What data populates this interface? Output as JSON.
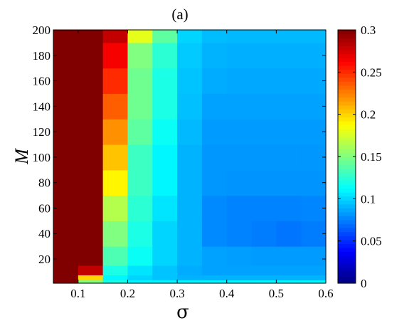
{
  "chart_data": {
    "type": "heatmap",
    "title": "(a)",
    "xlabel": "σ",
    "ylabel": "M",
    "xlim": [
      0.05,
      0.6
    ],
    "ylim": [
      1,
      200
    ],
    "x_ticks": [
      "0.1",
      "0.2",
      "0.3",
      "0.4",
      "0.5",
      "0.6"
    ],
    "y_ticks": [
      "20",
      "40",
      "60",
      "80",
      "100",
      "120",
      "140",
      "160",
      "180",
      "200"
    ],
    "colorbar": {
      "colormap": "jet",
      "range": [
        0,
        0.3
      ],
      "ticks": [
        "0",
        "0.05",
        "0.1",
        "0.15",
        "0.2",
        "0.25",
        "0.3"
      ]
    },
    "sigma_columns": [
      0.075,
      0.125,
      0.175,
      0.225,
      0.275,
      0.325,
      0.375,
      0.425,
      0.475,
      0.525,
      0.575
    ],
    "M_rows": [
      2,
      5,
      10,
      20,
      40,
      60,
      80,
      100,
      120,
      140,
      160,
      180,
      200
    ],
    "values": [
      [
        0.3,
        0.15,
        0.12,
        0.11,
        0.11,
        0.11,
        0.11,
        0.11,
        0.11,
        0.11,
        0.11
      ],
      [
        0.3,
        0.2,
        0.11,
        0.1,
        0.095,
        0.09,
        0.09,
        0.09,
        0.09,
        0.09,
        0.09
      ],
      [
        0.3,
        0.28,
        0.12,
        0.105,
        0.095,
        0.088,
        0.085,
        0.085,
        0.085,
        0.085,
        0.085
      ],
      [
        0.3,
        0.3,
        0.135,
        0.115,
        0.1,
        0.09,
        0.085,
        0.084,
        0.083,
        0.083,
        0.083
      ],
      [
        0.3,
        0.3,
        0.15,
        0.12,
        0.1,
        0.09,
        0.078,
        0.076,
        0.074,
        0.072,
        0.074
      ],
      [
        0.3,
        0.3,
        0.165,
        0.125,
        0.105,
        0.09,
        0.078,
        0.076,
        0.076,
        0.076,
        0.077
      ],
      [
        0.3,
        0.3,
        0.19,
        0.13,
        0.11,
        0.09,
        0.082,
        0.081,
        0.081,
        0.081,
        0.081
      ],
      [
        0.3,
        0.3,
        0.205,
        0.13,
        0.11,
        0.09,
        0.082,
        0.082,
        0.082,
        0.082,
        0.082
      ],
      [
        0.3,
        0.3,
        0.22,
        0.14,
        0.115,
        0.092,
        0.083,
        0.083,
        0.083,
        0.083,
        0.083
      ],
      [
        0.3,
        0.3,
        0.235,
        0.145,
        0.12,
        0.094,
        0.085,
        0.085,
        0.085,
        0.085,
        0.085
      ],
      [
        0.3,
        0.3,
        0.25,
        0.145,
        0.12,
        0.095,
        0.088,
        0.087,
        0.087,
        0.087,
        0.087
      ],
      [
        0.3,
        0.3,
        0.265,
        0.15,
        0.125,
        0.097,
        0.09,
        0.089,
        0.089,
        0.089,
        0.089
      ],
      [
        0.3,
        0.3,
        0.28,
        0.18,
        0.14,
        0.1,
        0.093,
        0.092,
        0.092,
        0.092,
        0.092
      ]
    ]
  }
}
